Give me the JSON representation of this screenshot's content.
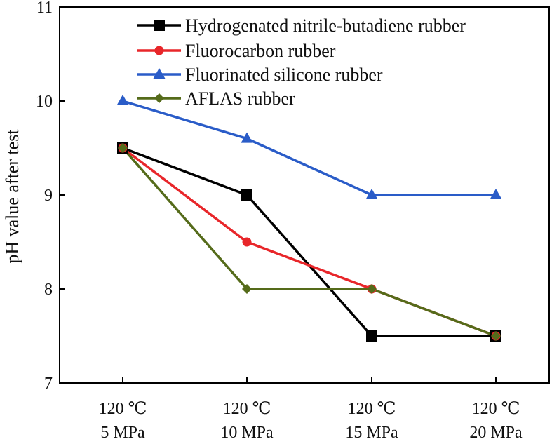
{
  "chart_data": {
    "type": "line",
    "title": "",
    "xlabel": "",
    "ylabel": "pH value after test",
    "ylim": [
      7,
      11
    ],
    "yticks": [
      7,
      8,
      9,
      10,
      11
    ],
    "categories": [
      {
        "line1": "120 ℃",
        "line2": "5 MPa"
      },
      {
        "line1": "120 ℃",
        "line2": "10 MPa"
      },
      {
        "line1": "120 ℃",
        "line2": "15 MPa"
      },
      {
        "line1": "120 ℃",
        "line2": "20 MPa"
      }
    ],
    "legend_position": "top-right",
    "grid": false,
    "series": [
      {
        "name": "Hydrogenated nitrile-butadiene rubber",
        "color": "#000000",
        "marker": "square",
        "values": [
          9.5,
          9.0,
          7.5,
          7.5
        ]
      },
      {
        "name": "Fluorocarbon rubber",
        "color": "#e8262a",
        "marker": "circle",
        "values": [
          9.5,
          8.5,
          8.0,
          7.5
        ]
      },
      {
        "name": "Fluorinated silicone rubber",
        "color": "#2a5cc8",
        "marker": "triangle",
        "values": [
          10.0,
          9.6,
          9.0,
          9.0
        ]
      },
      {
        "name": "AFLAS rubber",
        "color": "#556b1a",
        "marker": "diamond",
        "values": [
          9.5,
          8.0,
          8.0,
          7.5
        ]
      }
    ]
  }
}
